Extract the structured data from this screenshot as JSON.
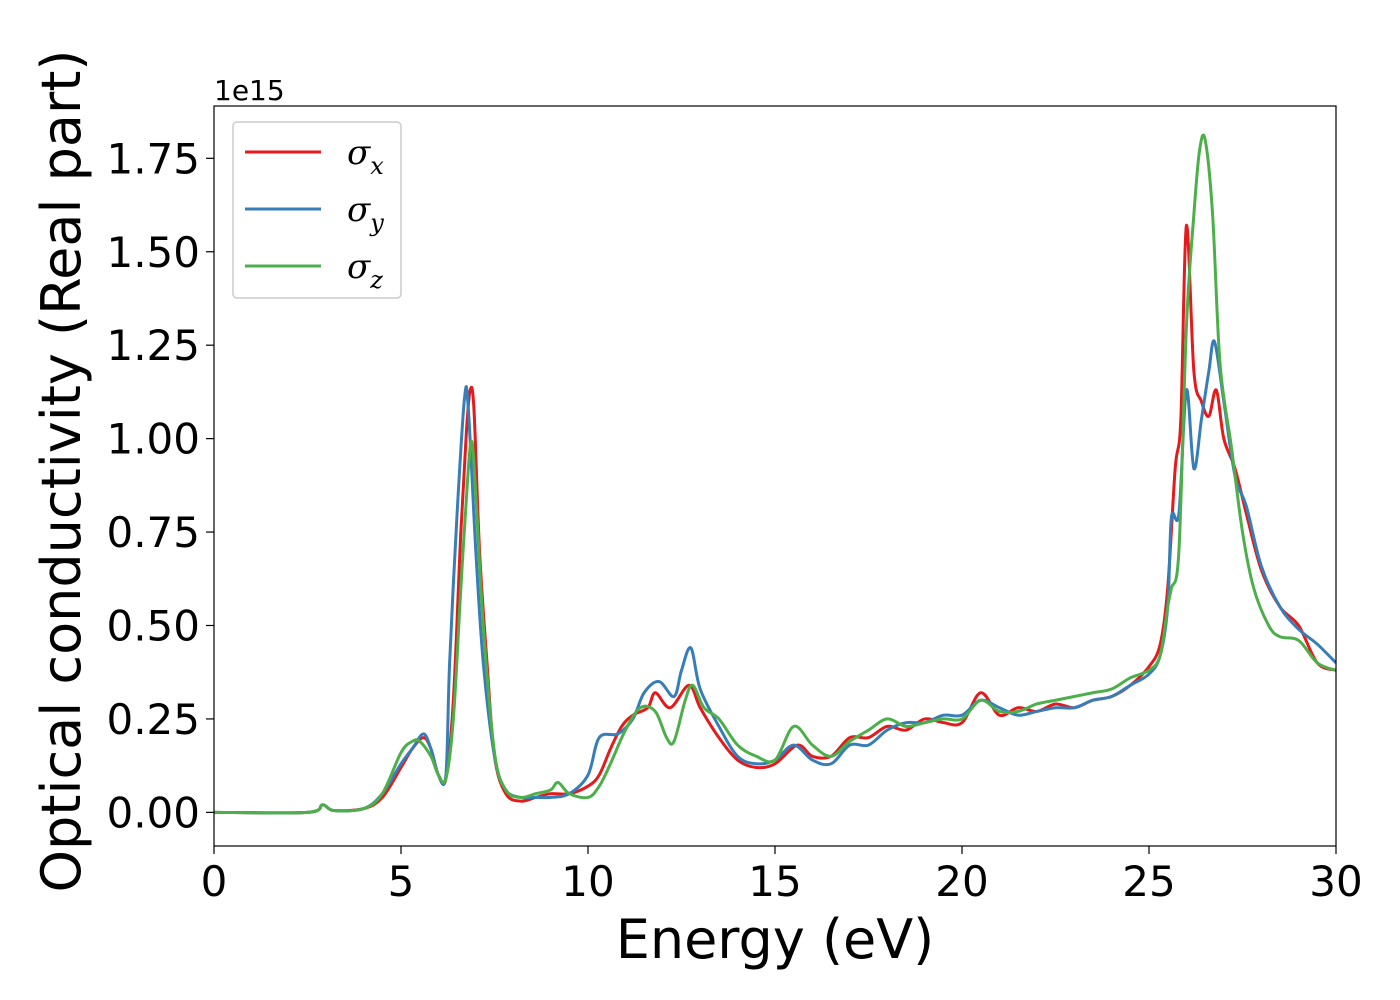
{
  "chart_data": {
    "type": "line",
    "title": "",
    "xlabel": "Energy (eV)",
    "ylabel": "Optical conductivity (Real part)",
    "y_offset_label": "1e15",
    "y_scale": 1000000000000000.0,
    "xlim": [
      0,
      30
    ],
    "ylim": [
      -0.09,
      1.89
    ],
    "x_ticks": [
      0,
      5,
      10,
      15,
      20,
      25,
      30
    ],
    "x_tick_labels": [
      "0",
      "5",
      "10",
      "15",
      "20",
      "25",
      "30"
    ],
    "y_ticks": [
      0.0,
      0.25,
      0.5,
      0.75,
      1.0,
      1.25,
      1.5,
      1.75
    ],
    "y_tick_labels": [
      "0.00",
      "0.25",
      "0.50",
      "0.75",
      "1.00",
      "1.25",
      "1.50",
      "1.75"
    ],
    "grid": false,
    "legend": {
      "position": "top-left",
      "entries": [
        {
          "base": "σ",
          "sub": "x"
        },
        {
          "base": "σ",
          "sub": "y"
        },
        {
          "base": "σ",
          "sub": "z"
        }
      ]
    },
    "series": [
      {
        "name": "σx",
        "color": "#e41a1c",
        "points": [
          [
            0,
            0
          ],
          [
            2.5,
            0.0
          ],
          [
            2.9,
            0.02
          ],
          [
            3.2,
            0.005
          ],
          [
            4.0,
            0.01
          ],
          [
            4.5,
            0.04
          ],
          [
            5.0,
            0.12
          ],
          [
            5.3,
            0.17
          ],
          [
            5.6,
            0.2
          ],
          [
            5.8,
            0.17
          ],
          [
            6.0,
            0.1
          ],
          [
            6.2,
            0.09
          ],
          [
            6.4,
            0.3
          ],
          [
            6.6,
            0.75
          ],
          [
            6.75,
            1.02
          ],
          [
            6.85,
            1.13
          ],
          [
            6.95,
            1.08
          ],
          [
            7.1,
            0.7
          ],
          [
            7.3,
            0.4
          ],
          [
            7.5,
            0.15
          ],
          [
            7.8,
            0.05
          ],
          [
            8.2,
            0.03
          ],
          [
            8.6,
            0.04
          ],
          [
            9.0,
            0.05
          ],
          [
            9.5,
            0.05
          ],
          [
            10.0,
            0.07
          ],
          [
            10.3,
            0.1
          ],
          [
            10.6,
            0.17
          ],
          [
            10.9,
            0.23
          ],
          [
            11.2,
            0.26
          ],
          [
            11.6,
            0.28
          ],
          [
            11.8,
            0.32
          ],
          [
            12.2,
            0.28
          ],
          [
            12.7,
            0.34
          ],
          [
            13.0,
            0.28
          ],
          [
            13.5,
            0.2
          ],
          [
            14.0,
            0.14
          ],
          [
            14.5,
            0.12
          ],
          [
            15.0,
            0.13
          ],
          [
            15.6,
            0.18
          ],
          [
            16.0,
            0.15
          ],
          [
            16.5,
            0.15
          ],
          [
            17.0,
            0.2
          ],
          [
            17.5,
            0.2
          ],
          [
            18.0,
            0.23
          ],
          [
            18.5,
            0.22
          ],
          [
            19.0,
            0.25
          ],
          [
            19.5,
            0.24
          ],
          [
            20.0,
            0.24
          ],
          [
            20.5,
            0.32
          ],
          [
            21.0,
            0.26
          ],
          [
            21.5,
            0.28
          ],
          [
            22.0,
            0.27
          ],
          [
            22.5,
            0.29
          ],
          [
            23.0,
            0.28
          ],
          [
            23.5,
            0.3
          ],
          [
            24.0,
            0.31
          ],
          [
            24.5,
            0.34
          ],
          [
            25.0,
            0.39
          ],
          [
            25.3,
            0.45
          ],
          [
            25.5,
            0.6
          ],
          [
            25.7,
            0.92
          ],
          [
            25.85,
            1.05
          ],
          [
            26.0,
            1.57
          ],
          [
            26.2,
            1.18
          ],
          [
            26.4,
            1.1
          ],
          [
            26.6,
            1.06
          ],
          [
            26.8,
            1.13
          ],
          [
            27.0,
            1.0
          ],
          [
            27.3,
            0.92
          ],
          [
            27.6,
            0.8
          ],
          [
            28.0,
            0.65
          ],
          [
            28.5,
            0.55
          ],
          [
            29.0,
            0.5
          ],
          [
            29.5,
            0.4
          ],
          [
            30.0,
            0.38
          ]
        ]
      },
      {
        "name": "σy",
        "color": "#377eb8",
        "points": [
          [
            0,
            0
          ],
          [
            2.5,
            0.0
          ],
          [
            2.9,
            0.02
          ],
          [
            3.2,
            0.005
          ],
          [
            4.0,
            0.01
          ],
          [
            4.5,
            0.05
          ],
          [
            5.0,
            0.13
          ],
          [
            5.3,
            0.17
          ],
          [
            5.6,
            0.21
          ],
          [
            5.8,
            0.17
          ],
          [
            6.0,
            0.1
          ],
          [
            6.2,
            0.1
          ],
          [
            6.3,
            0.4
          ],
          [
            6.5,
            0.8
          ],
          [
            6.7,
            1.11
          ],
          [
            6.8,
            1.08
          ],
          [
            7.0,
            0.7
          ],
          [
            7.2,
            0.4
          ],
          [
            7.5,
            0.15
          ],
          [
            7.8,
            0.06
          ],
          [
            8.2,
            0.04
          ],
          [
            8.6,
            0.04
          ],
          [
            9.0,
            0.04
          ],
          [
            9.5,
            0.05
          ],
          [
            10.0,
            0.1
          ],
          [
            10.3,
            0.2
          ],
          [
            10.8,
            0.21
          ],
          [
            11.2,
            0.25
          ],
          [
            11.5,
            0.32
          ],
          [
            11.9,
            0.35
          ],
          [
            12.3,
            0.31
          ],
          [
            12.5,
            0.38
          ],
          [
            12.75,
            0.44
          ],
          [
            13.0,
            0.33
          ],
          [
            13.5,
            0.23
          ],
          [
            14.0,
            0.15
          ],
          [
            14.5,
            0.13
          ],
          [
            15.0,
            0.14
          ],
          [
            15.5,
            0.18
          ],
          [
            16.0,
            0.14
          ],
          [
            16.5,
            0.13
          ],
          [
            17.0,
            0.18
          ],
          [
            17.5,
            0.18
          ],
          [
            18.0,
            0.22
          ],
          [
            18.5,
            0.24
          ],
          [
            19.0,
            0.24
          ],
          [
            19.5,
            0.26
          ],
          [
            20.0,
            0.26
          ],
          [
            20.5,
            0.3
          ],
          [
            21.0,
            0.28
          ],
          [
            21.5,
            0.26
          ],
          [
            22.0,
            0.27
          ],
          [
            22.5,
            0.28
          ],
          [
            23.0,
            0.28
          ],
          [
            23.5,
            0.3
          ],
          [
            24.0,
            0.31
          ],
          [
            24.5,
            0.34
          ],
          [
            25.0,
            0.37
          ],
          [
            25.3,
            0.42
          ],
          [
            25.5,
            0.55
          ],
          [
            25.6,
            0.79
          ],
          [
            25.8,
            0.8
          ],
          [
            26.0,
            1.13
          ],
          [
            26.2,
            0.92
          ],
          [
            26.4,
            1.05
          ],
          [
            26.6,
            1.18
          ],
          [
            26.75,
            1.26
          ],
          [
            27.0,
            1.1
          ],
          [
            27.3,
            0.9
          ],
          [
            27.6,
            0.82
          ],
          [
            28.0,
            0.66
          ],
          [
            28.5,
            0.55
          ],
          [
            29.0,
            0.49
          ],
          [
            29.5,
            0.45
          ],
          [
            30.0,
            0.4
          ]
        ]
      },
      {
        "name": "σz",
        "color": "#4daf4a",
        "points": [
          [
            0,
            0
          ],
          [
            2.5,
            0.0
          ],
          [
            2.9,
            0.02
          ],
          [
            3.2,
            0.005
          ],
          [
            4.0,
            0.01
          ],
          [
            4.5,
            0.05
          ],
          [
            5.0,
            0.16
          ],
          [
            5.3,
            0.19
          ],
          [
            5.5,
            0.19
          ],
          [
            5.8,
            0.15
          ],
          [
            6.0,
            0.1
          ],
          [
            6.2,
            0.09
          ],
          [
            6.4,
            0.25
          ],
          [
            6.6,
            0.6
          ],
          [
            6.8,
            0.92
          ],
          [
            6.9,
            0.99
          ],
          [
            7.0,
            0.85
          ],
          [
            7.2,
            0.5
          ],
          [
            7.5,
            0.16
          ],
          [
            7.8,
            0.06
          ],
          [
            8.2,
            0.04
          ],
          [
            8.6,
            0.05
          ],
          [
            9.0,
            0.06
          ],
          [
            9.2,
            0.08
          ],
          [
            9.5,
            0.05
          ],
          [
            10.0,
            0.04
          ],
          [
            10.3,
            0.07
          ],
          [
            10.6,
            0.13
          ],
          [
            11.0,
            0.22
          ],
          [
            11.4,
            0.28
          ],
          [
            11.8,
            0.27
          ],
          [
            12.1,
            0.2
          ],
          [
            12.3,
            0.19
          ],
          [
            12.6,
            0.3
          ],
          [
            12.8,
            0.34
          ],
          [
            13.1,
            0.28
          ],
          [
            13.5,
            0.25
          ],
          [
            14.0,
            0.18
          ],
          [
            14.5,
            0.15
          ],
          [
            15.0,
            0.14
          ],
          [
            15.5,
            0.23
          ],
          [
            16.0,
            0.18
          ],
          [
            16.5,
            0.15
          ],
          [
            17.0,
            0.19
          ],
          [
            17.5,
            0.22
          ],
          [
            18.0,
            0.25
          ],
          [
            18.5,
            0.23
          ],
          [
            19.0,
            0.24
          ],
          [
            19.5,
            0.25
          ],
          [
            20.0,
            0.25
          ],
          [
            20.5,
            0.3
          ],
          [
            21.0,
            0.27
          ],
          [
            21.5,
            0.27
          ],
          [
            22.0,
            0.29
          ],
          [
            22.5,
            0.3
          ],
          [
            23.0,
            0.31
          ],
          [
            23.5,
            0.32
          ],
          [
            24.0,
            0.33
          ],
          [
            24.5,
            0.36
          ],
          [
            25.0,
            0.38
          ],
          [
            25.3,
            0.42
          ],
          [
            25.5,
            0.55
          ],
          [
            25.6,
            0.6
          ],
          [
            25.8,
            0.7
          ],
          [
            26.0,
            1.3
          ],
          [
            26.2,
            1.6
          ],
          [
            26.35,
            1.77
          ],
          [
            26.5,
            1.8
          ],
          [
            26.7,
            1.6
          ],
          [
            26.9,
            1.2
          ],
          [
            27.2,
            0.98
          ],
          [
            27.5,
            0.75
          ],
          [
            27.8,
            0.6
          ],
          [
            28.2,
            0.5
          ],
          [
            28.5,
            0.47
          ],
          [
            29.0,
            0.46
          ],
          [
            29.5,
            0.4
          ],
          [
            30.0,
            0.38
          ]
        ]
      }
    ]
  }
}
